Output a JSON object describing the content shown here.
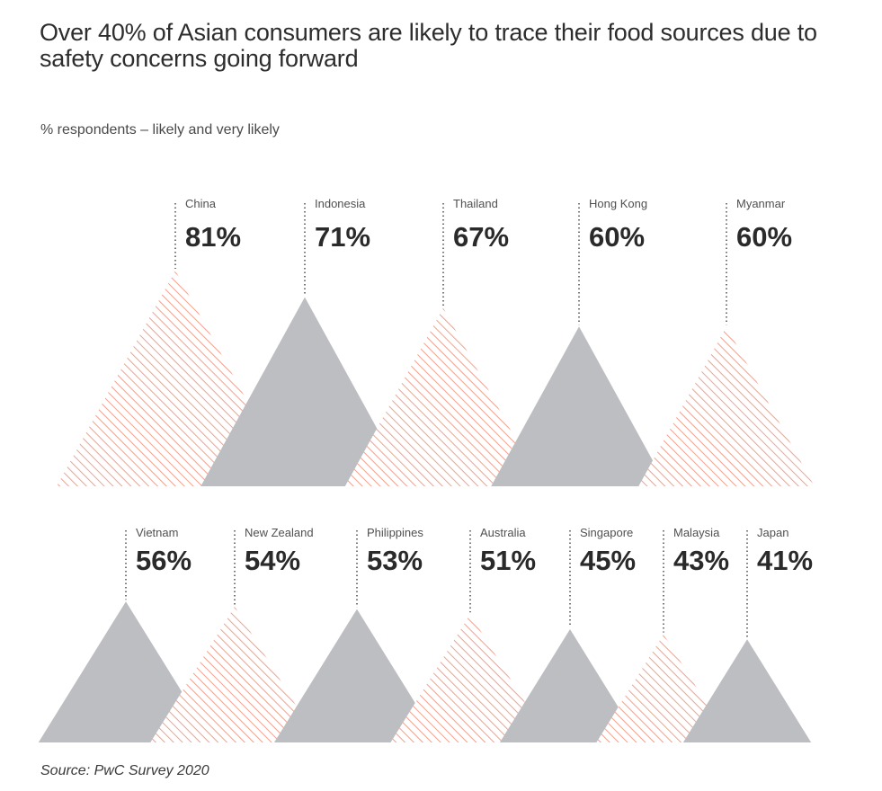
{
  "title": "Over 40% of Asian consumers are likely to trace their food sources due to safety concerns going forward",
  "subtitle": "% respondents – likely and very likely",
  "source": "Source: PwC Survey 2020",
  "colors": {
    "hatch": "#f2a08c",
    "solid": "#bdbec2",
    "text": "#2a2a2a",
    "leader": "#4a4a4a"
  },
  "chart_data": {
    "type": "bar",
    "style": "overlapping triangles (peak height proportional to value)",
    "title": "Over 40% of Asian consumers are likely to trace their food sources due to safety concerns going forward",
    "ylabel": "% respondents – likely and very likely",
    "unit": "%",
    "categories": [
      "China",
      "Indonesia",
      "Thailand",
      "Hong Kong",
      "Myanmar",
      "Vietnam",
      "New Zealand",
      "Philippines",
      "Australia",
      "Singapore",
      "Malaysia",
      "Japan"
    ],
    "values": [
      81,
      71,
      67,
      60,
      60,
      56,
      54,
      53,
      51,
      45,
      43,
      41
    ],
    "value_labels": [
      "81%",
      "71%",
      "67%",
      "60%",
      "60%",
      "56%",
      "54%",
      "53%",
      "51%",
      "45%",
      "43%",
      "41%"
    ],
    "fill": [
      "hatched",
      "solid",
      "hatched",
      "solid",
      "hatched",
      "solid",
      "hatched",
      "solid",
      "hatched",
      "solid",
      "hatched",
      "solid"
    ],
    "rows": [
      [
        "China",
        "Indonesia",
        "Thailand",
        "Hong Kong",
        "Myanmar"
      ],
      [
        "Vietnam",
        "New Zealand",
        "Philippines",
        "Australia",
        "Singapore",
        "Malaysia",
        "Japan"
      ]
    ]
  }
}
